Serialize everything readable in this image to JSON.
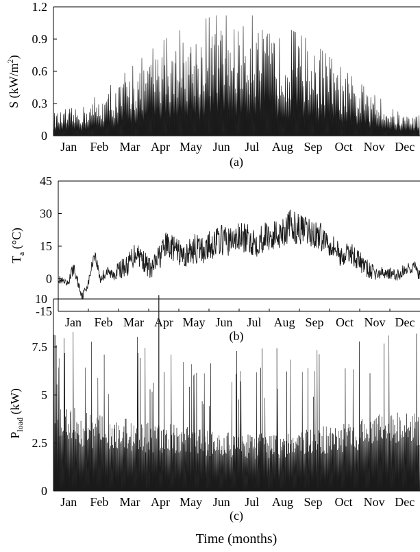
{
  "figure": {
    "shared_xlabel": "Time (months)",
    "color": "#1a1a1a"
  },
  "chart_data": [
    {
      "type": "area",
      "panel_label": "(a)",
      "ylabel": "S (kW/m²)",
      "ylabel_parts": {
        "main": "S (kW/m",
        "sup": "2",
        "tail": ")"
      },
      "ylim": [
        0,
        1.2
      ],
      "yticks": [
        0,
        0.3,
        0.6,
        0.9,
        1.2
      ],
      "ytick_labels": [
        "0",
        "0.3",
        "0.6",
        "0.9",
        "1.2"
      ],
      "xticklabels": [
        "Jan",
        "Feb",
        "Mar",
        "Apr",
        "May",
        "Jun",
        "Jul",
        "Aug",
        "Sep",
        "Oct",
        "Nov",
        "Dec"
      ],
      "series": [
        {
          "approx_daily_peak": [
            0.22,
            0.34,
            0.56,
            0.78,
            0.93,
            1.02,
            1.03,
            0.92,
            0.78,
            0.55,
            0.34,
            0.2
          ],
          "approx_max": 1.12
        }
      ]
    },
    {
      "type": "line",
      "panel_label": "(b)",
      "ylabel": "Ta (°C)",
      "ylabel_parts": {
        "main": "T",
        "sub": "a",
        "tail": " (°C)"
      },
      "ylim": [
        -15,
        45
      ],
      "yticks": [
        -15,
        0,
        15,
        30,
        45
      ],
      "ytick_labels": [
        "-15",
        "0",
        "15",
        "30",
        "45"
      ],
      "xticklabels": [
        "Jan",
        "Feb",
        "Mar",
        "Apr",
        "May",
        "Jun",
        "Jul",
        "Aug",
        "Sep",
        "Oct",
        "Nov",
        "Dec"
      ],
      "series": [
        {
          "x": [
            0,
            0.3,
            0.5,
            0.8,
            1.0,
            1.2,
            1.4,
            1.6,
            1.8,
            2.0,
            2.3,
            2.6,
            2.9,
            3.1,
            3.3,
            3.6,
            3.9,
            4.2,
            4.5,
            4.8,
            5.1,
            5.4,
            5.7,
            6.0,
            6.3,
            6.6,
            6.9,
            7.1,
            7.4,
            7.7,
            8.0,
            8.3,
            8.6,
            8.9,
            9.2,
            9.4,
            9.7,
            10.0,
            10.3,
            10.6,
            10.9,
            11.2,
            11.5,
            11.8,
            12.0
          ],
          "y": [
            0,
            -3,
            5,
            -8,
            -2,
            12,
            0,
            3,
            2,
            4,
            6,
            13,
            7,
            4,
            9,
            16,
            13,
            10,
            14,
            13,
            16,
            18,
            17,
            19,
            18,
            17,
            20,
            19,
            22,
            24,
            23,
            21,
            20,
            18,
            14,
            10,
            12,
            8,
            4,
            2,
            3,
            1,
            4,
            6,
            1
          ],
          "band": [
            2,
            2,
            3,
            2,
            2,
            3,
            3,
            3,
            3,
            4,
            5,
            6,
            5,
            5,
            6,
            6,
            6,
            6,
            7,
            7,
            7,
            7,
            7,
            7,
            7,
            7,
            7,
            7,
            8,
            8,
            7,
            7,
            7,
            6,
            6,
            5,
            5,
            5,
            4,
            3,
            3,
            3,
            3,
            3,
            3
          ]
        }
      ]
    },
    {
      "type": "area",
      "panel_label": "(c)",
      "ylabel": "Pload (kW)",
      "ylabel_parts": {
        "main": "P",
        "sub": "load",
        "tail": " (kW)"
      },
      "ylim": [
        0,
        10
      ],
      "yticks": [
        0,
        2.5,
        5,
        7.5,
        10
      ],
      "ytick_labels": [
        "0",
        "2.5",
        "5",
        "7.5",
        "10"
      ],
      "xticklabels": [
        "Jan",
        "Feb",
        "Mar",
        "Apr",
        "May",
        "Jun",
        "Jul",
        "Aug",
        "Sep",
        "Oct",
        "Nov",
        "Dec"
      ],
      "series": [
        {
          "approx_base": [
            4.0,
            3.6,
            3.4,
            3.3,
            3.0,
            2.8,
            2.7,
            2.8,
            3.0,
            3.3,
            3.6,
            3.9
          ],
          "approx_max": 10.2
        }
      ]
    }
  ]
}
